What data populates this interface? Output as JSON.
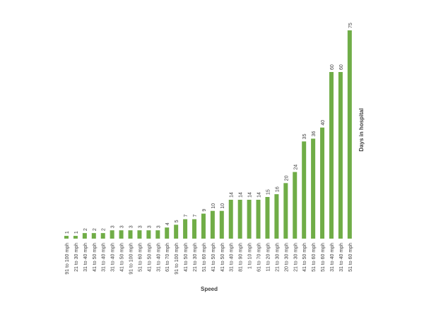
{
  "chart_data": {
    "type": "bar",
    "xlabel": "Speed",
    "ylabel": "Days in hospital",
    "bar_color": "#70ad47",
    "label_color": "#404040",
    "categories": [
      "91 to 100 mph",
      "21 to 30 mph",
      "31 to 40 mph",
      "41 to 50 mph",
      "31 to 40 mph",
      "31 to 40 mph",
      "41 to 50 mph",
      "91 to 100 mph",
      "51 to 60 mph",
      "41 to 50 mph",
      "31 to 40 mph",
      "61 to 70 mph",
      "91 to 100 mph",
      "41 to 50 mph",
      "21 to 30 mph",
      "51 to 60 mph",
      "41 to 50 mph",
      "41 to 50 mph",
      "31 to 40 mph",
      "81 to 90 mph",
      "1 to 10 mph",
      "61 to 70 mph",
      "11 to 20 mph",
      "21 to 30 mph",
      "20 to 30 mph",
      "21 to 30 mph",
      "41 to 50 mph",
      "51 to 60 mph",
      "51 to 60 mph",
      "31 to 40 mph",
      "31 to 40 mph",
      "51 to 60 mph"
    ],
    "values": [
      1,
      1,
      2,
      2,
      2,
      3,
      3,
      3,
      3,
      3,
      3,
      4,
      5,
      7,
      7,
      9,
      10,
      10,
      14,
      14,
      14,
      14,
      15,
      16,
      20,
      24,
      35,
      36,
      40,
      60,
      60,
      75
    ],
    "ylim": [
      0,
      75
    ],
    "grid": false,
    "legend": "none"
  }
}
